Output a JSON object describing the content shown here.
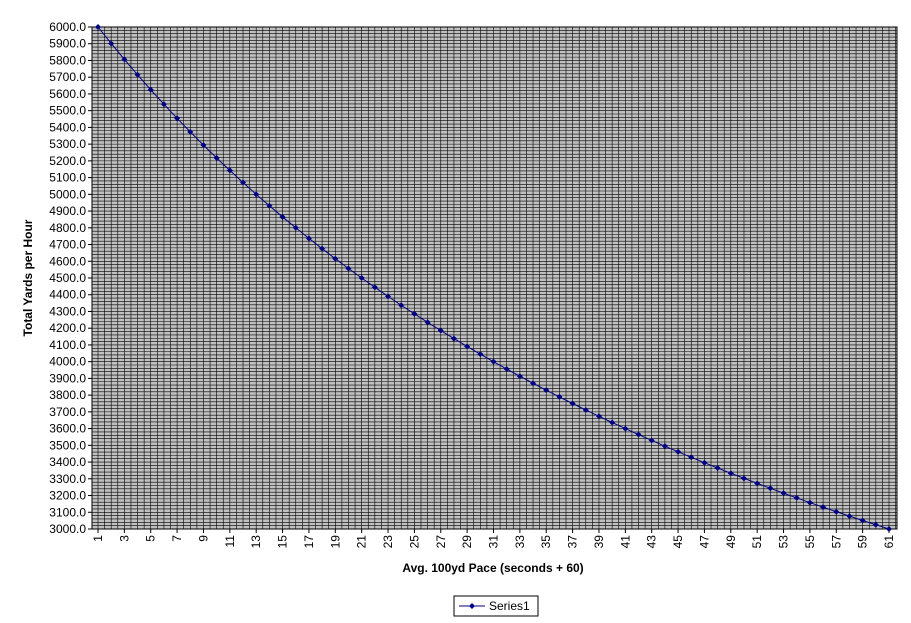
{
  "chart_data": {
    "type": "line",
    "xlabel": "Avg. 100yd Pace (seconds + 60)",
    "ylabel": "Total Yards per Hour",
    "x": [
      1,
      2,
      3,
      4,
      5,
      6,
      7,
      8,
      9,
      10,
      11,
      12,
      13,
      14,
      15,
      16,
      17,
      18,
      19,
      20,
      21,
      22,
      23,
      24,
      25,
      26,
      27,
      28,
      29,
      30,
      31,
      32,
      33,
      34,
      35,
      36,
      37,
      38,
      39,
      40,
      41,
      42,
      43,
      44,
      45,
      46,
      47,
      48,
      49,
      50,
      51,
      52,
      53,
      54,
      55,
      56,
      57,
      58,
      59,
      60,
      61
    ],
    "xticks": [
      1,
      3,
      5,
      7,
      9,
      11,
      13,
      15,
      17,
      19,
      21,
      23,
      25,
      27,
      29,
      31,
      33,
      35,
      37,
      39,
      41,
      43,
      45,
      47,
      49,
      51,
      53,
      55,
      57,
      59,
      61
    ],
    "ylim": [
      3000,
      6000
    ],
    "yticks": [
      "3000.0",
      "3100.0",
      "3200.0",
      "3300.0",
      "3400.0",
      "3500.0",
      "3600.0",
      "3700.0",
      "3800.0",
      "3900.0",
      "4000.0",
      "4100.0",
      "4200.0",
      "4300.0",
      "4400.0",
      "4500.0",
      "4600.0",
      "4700.0",
      "4800.0",
      "4900.0",
      "5000.0",
      "5100.0",
      "5200.0",
      "5300.0",
      "5400.0",
      "5500.0",
      "5600.0",
      "5700.0",
      "5800.0",
      "5900.0",
      "6000.0"
    ],
    "grid": true,
    "legend_position": "bottom-center",
    "series": [
      {
        "name": "Series1",
        "color": "#000080",
        "values": [
          6000.0,
          5901.6,
          5806.5,
          5714.3,
          5625.0,
          5538.5,
          5454.5,
          5373.1,
          5294.1,
          5217.4,
          5142.9,
          5070.4,
          5000.0,
          4931.5,
          4864.9,
          4800.0,
          4736.8,
          4675.3,
          4615.4,
          4556.96,
          4500.0,
          4444.4,
          4390.2,
          4337.3,
          4285.7,
          4235.3,
          4186.0,
          4137.9,
          4090.9,
          4044.9,
          4000.0,
          3956.0,
          3913.0,
          3871.0,
          3829.8,
          3789.5,
          3750.0,
          3711.3,
          3673.5,
          3636.4,
          3600.0,
          3564.4,
          3529.4,
          3495.1,
          3461.5,
          3428.6,
          3396.2,
          3364.5,
          3333.3,
          3302.8,
          3272.7,
          3243.2,
          3214.3,
          3185.8,
          3157.9,
          3130.4,
          3103.4,
          3076.9,
          3050.8,
          3025.2,
          3000.0
        ]
      }
    ]
  },
  "colors": {
    "plot_background": "#c0c0c0",
    "grid": "#000000",
    "series": "#000080"
  }
}
